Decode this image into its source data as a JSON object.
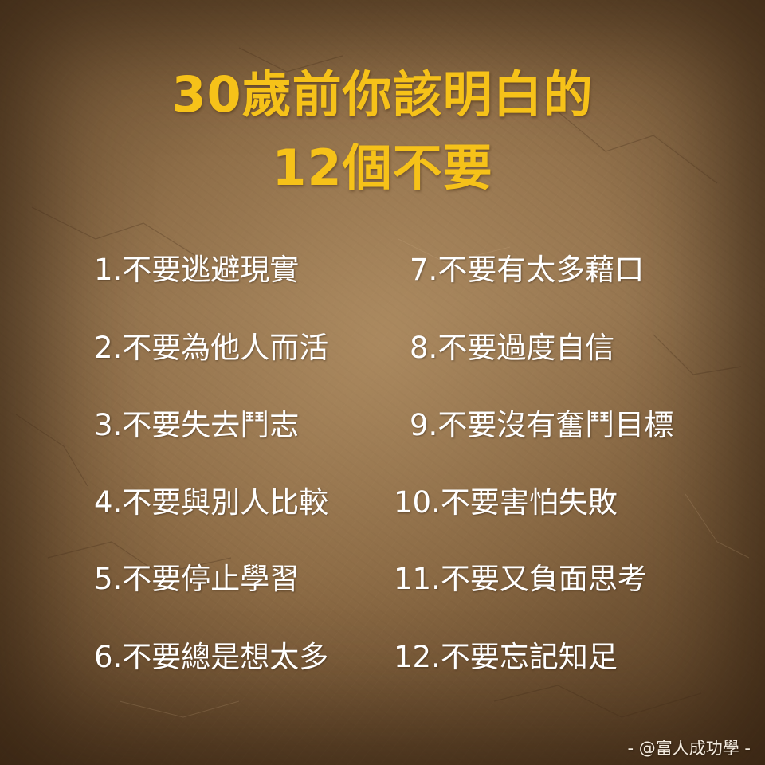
{
  "title": {
    "line1": "30歲前你該明白的",
    "line2": "12個不要"
  },
  "items": [
    "1.不要逃避現實",
    "2.不要為他人而活",
    "3.不要失去鬥志",
    "4.不要與別人比較",
    "5.不要停止學習",
    "6.不要總是想太多",
    "7.不要有太多藉口",
    "8.不要過度自信",
    "9.不要沒有奮鬥目標",
    "10.不要害怕失敗",
    "11.不要又負面思考",
    "12.不要忘記知足"
  ],
  "watermark": "- @富人成功學 -",
  "colors": {
    "title": "#f6c219",
    "item_text": "#ffffff",
    "background": "#8a6a45"
  }
}
